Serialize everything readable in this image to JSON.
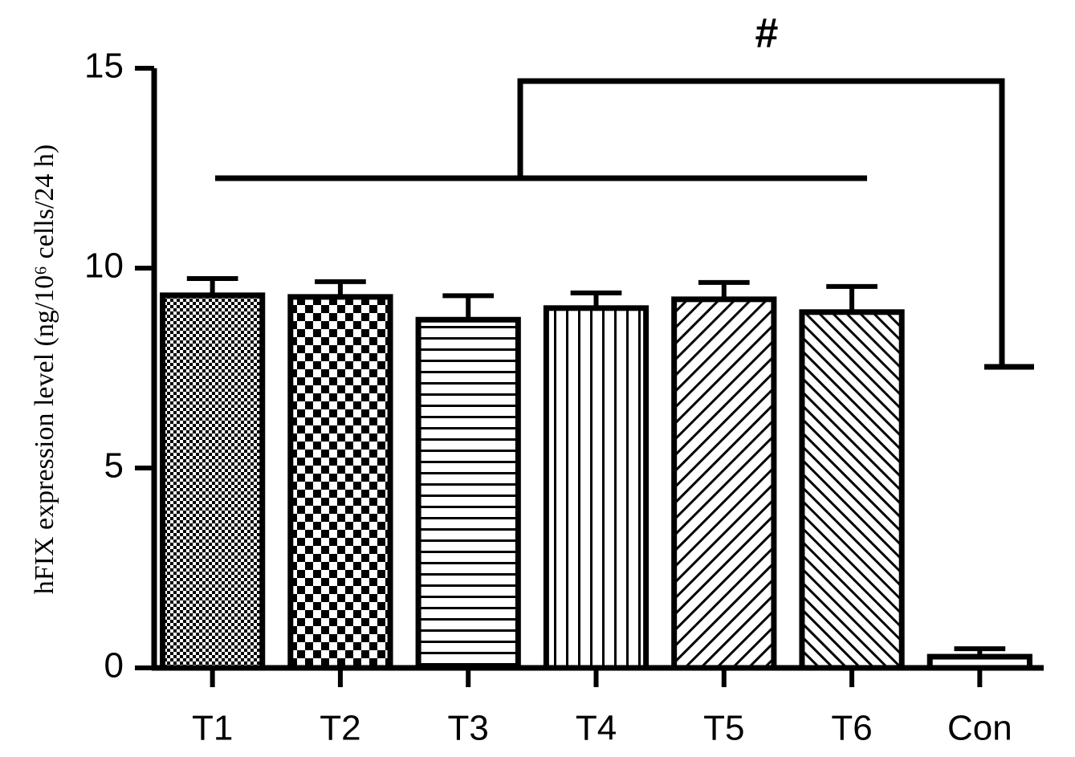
{
  "chart_data": {
    "type": "bar",
    "y_label": "hFIX expression level (ng/10⁶ cells/24 h)",
    "annotation": "#",
    "categories": [
      "T1",
      "T2",
      "T3",
      "T4",
      "T5",
      "T6",
      "Con"
    ],
    "values": [
      9.32,
      9.28,
      8.71,
      9.0,
      9.22,
      8.9,
      0.28
    ],
    "errors": [
      0.42,
      0.38,
      0.6,
      0.38,
      0.42,
      0.64,
      0.2
    ],
    "color": "#000000",
    "ylim": [
      0,
      15
    ],
    "yticks": [
      0,
      5,
      10,
      15
    ]
  }
}
